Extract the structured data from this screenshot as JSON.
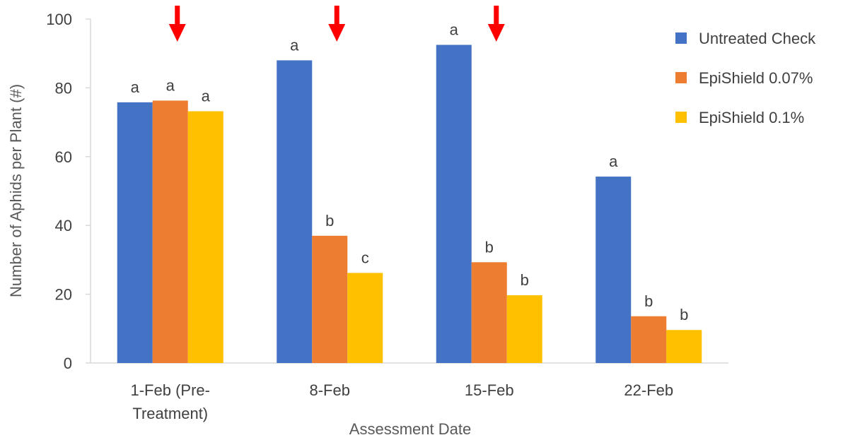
{
  "chart_data": {
    "type": "bar",
    "title": "",
    "xlabel": "Assessment Date",
    "ylabel": "Number of Aphids per Plant (#)",
    "ylim": [
      0,
      100
    ],
    "yticks": [
      0,
      20,
      40,
      60,
      80,
      100
    ],
    "grid": false,
    "legend": "right",
    "categories": [
      [
        "1-Feb (Pre-",
        "Treatment)"
      ],
      [
        "8-Feb"
      ],
      [
        "15-Feb"
      ],
      [
        "22-Feb"
      ]
    ],
    "series": [
      {
        "name": "Untreated Check",
        "color": "#4472C4",
        "values": [
          75.8,
          88.0,
          92.5,
          54.2
        ],
        "labels": [
          "a",
          "a",
          "a",
          "a"
        ]
      },
      {
        "name": "EpiShield 0.07%",
        "color": "#ED7D31",
        "values": [
          76.3,
          37.0,
          29.3,
          13.6
        ],
        "labels": [
          "a",
          "b",
          "b",
          "b"
        ]
      },
      {
        "name": "EpiShield 0.1%",
        "color": "#FFC000",
        "values": [
          73.2,
          26.2,
          19.7,
          9.6
        ],
        "labels": [
          "a",
          "c",
          "b",
          "b"
        ]
      }
    ],
    "arrows": {
      "color": "#FF0000",
      "category_index": [
        0,
        1,
        2
      ]
    }
  }
}
